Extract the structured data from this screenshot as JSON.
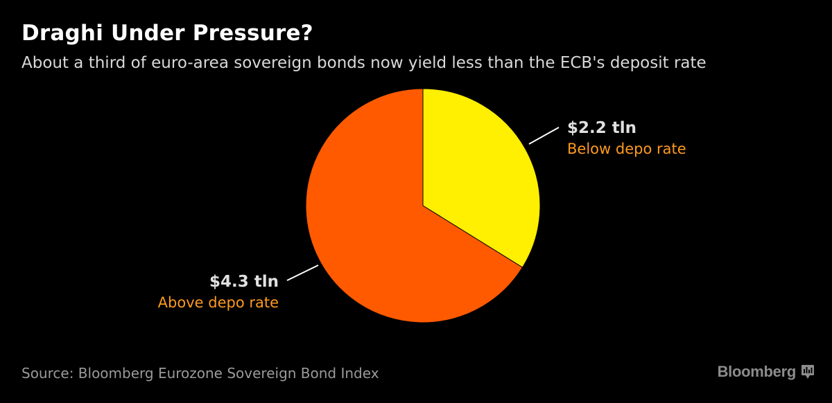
{
  "title": "Draghi Under Pressure?",
  "subtitle": "About a third of euro-area sovereign bonds now yield less than the ECB's deposit rate",
  "source": "Source: Bloomberg Eurozone Sovereign Bond Index",
  "brand": {
    "name": "Bloomberg",
    "icon": "bloomberg-terminal-icon"
  },
  "colors": {
    "background": "#000000",
    "below": "#ffef00",
    "above": "#ff5a00",
    "label_amount": "#e0e0e0",
    "label_category": "#ff9a1f"
  },
  "chart_data": {
    "type": "pie",
    "title": "Draghi Under Pressure?",
    "subtitle": "About a third of euro-area sovereign bonds now yield less than the ECB's deposit rate",
    "unit": "tln",
    "slices": [
      {
        "label": "Below depo rate",
        "value": 2.2,
        "value_label": "$2.2 tln",
        "color": "#ffef00"
      },
      {
        "label": "Above depo rate",
        "value": 4.3,
        "value_label": "$4.3 tln",
        "color": "#ff5a00"
      }
    ]
  }
}
